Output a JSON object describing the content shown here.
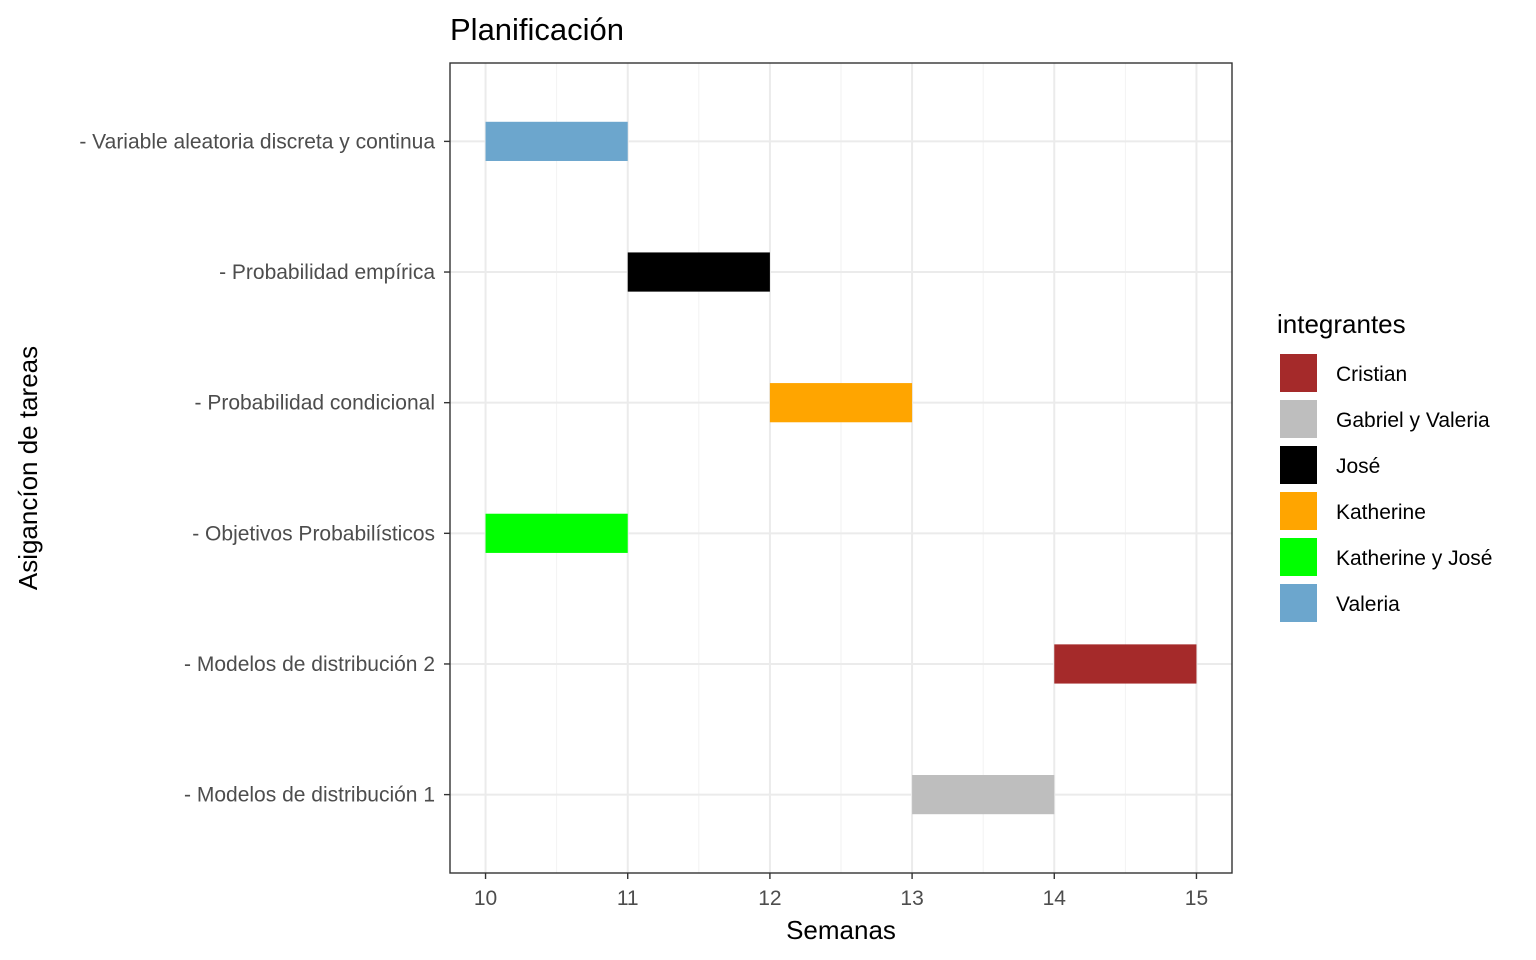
{
  "chart_data": {
    "type": "gantt",
    "title": "Planificación",
    "xlabel": "Semanas",
    "ylabel": "Asigancíon de tareas",
    "xlim": [
      9.75,
      15.25
    ],
    "xticks": [
      10,
      11,
      12,
      13,
      14,
      15
    ],
    "grid": true,
    "legend_position": "right",
    "legend": {
      "title": "integrantes",
      "entries": [
        {
          "name": "Cristian",
          "color": "#A52A2A"
        },
        {
          "name": "Gabriel y Valeria",
          "color": "#BEBEBE"
        },
        {
          "name": "José",
          "color": "#000000"
        },
        {
          "name": "Katherine",
          "color": "#FFA500"
        },
        {
          "name": "Katherine y José",
          "color": "#00FF00"
        },
        {
          "name": "Valeria",
          "color": "#6CA6CD"
        }
      ]
    },
    "tasks": [
      {
        "label": "- Variable aleatoria discreta y continua",
        "start": 10,
        "end": 11,
        "member": "Valeria"
      },
      {
        "label": "- Probabilidad empírica",
        "start": 11,
        "end": 12,
        "member": "José"
      },
      {
        "label": "- Probabilidad condicional",
        "start": 12,
        "end": 13,
        "member": "Katherine"
      },
      {
        "label": "- Objetivos Probabilísticos",
        "start": 10,
        "end": 11,
        "member": "Katherine y José"
      },
      {
        "label": "- Modelos de distribución 2",
        "start": 14,
        "end": 15,
        "member": "Cristian"
      },
      {
        "label": "- Modelos de distribución 1",
        "start": 13,
        "end": 14,
        "member": "Gabriel y Valeria"
      }
    ]
  }
}
